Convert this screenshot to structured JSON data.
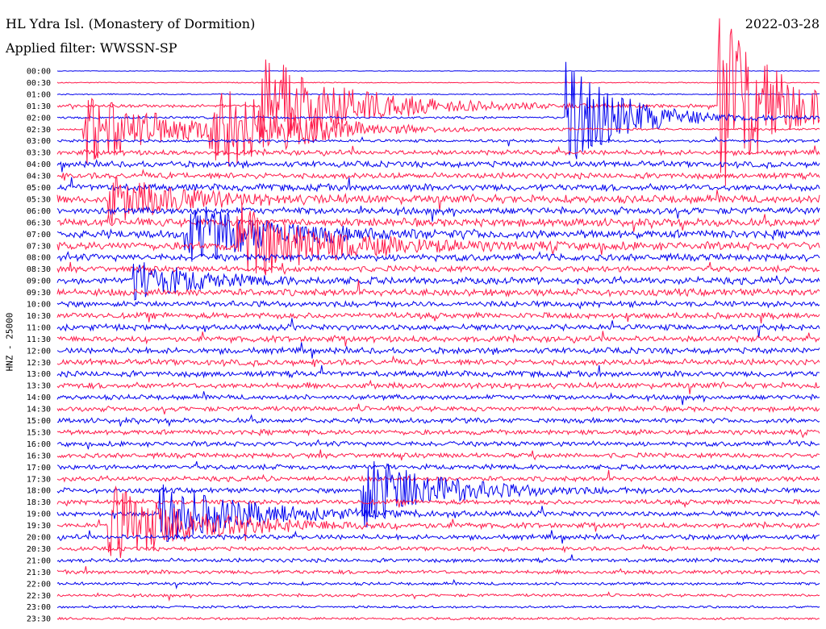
{
  "header": {
    "station": "HL Ydra Isl. (Monastery of Dormition)",
    "date": "2022-03-28",
    "filter": "Applied filter: WWSSN-SP"
  },
  "chart_data": {
    "type": "line",
    "title": "HL Ydra Isl. (Monastery of Dormition)",
    "ylabel": "HNZ - 25000",
    "colors": {
      "odd_trace": "#0000ee",
      "even_trace": "#ff1a4a"
    },
    "rows": [
      "00:00",
      "00:30",
      "01:00",
      "01:30",
      "02:00",
      "02:30",
      "03:00",
      "03:30",
      "04:00",
      "04:30",
      "05:00",
      "05:30",
      "06:00",
      "06:30",
      "07:00",
      "07:30",
      "08:00",
      "08:30",
      "09:00",
      "09:30",
      "10:00",
      "10:30",
      "11:00",
      "11:30",
      "12:00",
      "12:30",
      "13:00",
      "13:30",
      "14:00",
      "14:30",
      "15:00",
      "15:30",
      "16:00",
      "16:30",
      "17:00",
      "17:30",
      "18:00",
      "18:30",
      "19:00",
      "19:30",
      "20:00",
      "20:30",
      "21:00",
      "21:30",
      "22:00",
      "22:30",
      "23:00",
      "23:30"
    ],
    "noise_level": [
      0.3,
      0.5,
      0.6,
      1.5,
      1.2,
      1.0,
      1.5,
      2.5,
      3,
      3,
      3.5,
      4,
      3.5,
      4,
      4,
      4,
      3.5,
      3,
      3.5,
      3.5,
      3,
      3,
      3,
      3,
      3,
      3,
      3,
      3,
      2.5,
      2.5,
      2.5,
      2.5,
      2.5,
      2.5,
      2.5,
      2.5,
      2.5,
      2.5,
      2.5,
      2.5,
      2.5,
      2,
      2,
      2,
      1.5,
      1.5,
      1.2,
      1.2
    ],
    "events": [
      {
        "row": 3,
        "minute": 8,
        "amplitude": 70,
        "duration": 14
      },
      {
        "row": 3,
        "minute": 26,
        "amplitude": 120,
        "duration": 10
      },
      {
        "row": 3,
        "minute": 47,
        "amplitude": 105,
        "duration": 10
      },
      {
        "row": 3,
        "minute": 73,
        "amplitude": 55,
        "duration": 12
      },
      {
        "row": 3,
        "minute": 52,
        "amplitude": 40,
        "duration": 12
      },
      {
        "row": 4,
        "minute": 20,
        "amplitude": 70,
        "duration": 10
      },
      {
        "row": 5,
        "minute": 1,
        "amplitude": 48,
        "duration": 14
      },
      {
        "row": 5,
        "minute": 6,
        "amplitude": 60,
        "duration": 12
      },
      {
        "row": 6,
        "minute": 78,
        "amplitude": 80,
        "duration": 14
      },
      {
        "row": 7,
        "minute": 71,
        "amplitude": 110,
        "duration": 12
      },
      {
        "row": 8,
        "minute": 33,
        "amplitude": 60,
        "duration": 12
      },
      {
        "row": 8,
        "minute": 64,
        "amplitude": 80,
        "duration": 12
      },
      {
        "row": 9,
        "minute": 62,
        "amplitude": 60,
        "duration": 10
      },
      {
        "row": 10,
        "minute": 53,
        "amplitude": 70,
        "duration": 14
      },
      {
        "row": 11,
        "minute": 2,
        "amplitude": 30,
        "duration": 12
      },
      {
        "row": 11,
        "minute": 31,
        "amplitude": 60,
        "duration": 12
      },
      {
        "row": 11,
        "minute": 33,
        "amplitude": 60,
        "duration": 12
      },
      {
        "row": 11,
        "minute": 52,
        "amplitude": 40,
        "duration": 14
      },
      {
        "row": 12,
        "minute": 35,
        "amplitude": 35,
        "duration": 12
      },
      {
        "row": 12,
        "minute": 39,
        "amplitude": 140,
        "duration": 12
      },
      {
        "row": 13,
        "minute": 64,
        "amplitude": 70,
        "duration": 14
      },
      {
        "row": 14,
        "minute": 5,
        "amplitude": 40,
        "duration": 14
      },
      {
        "row": 14,
        "minute": 48,
        "amplitude": 40,
        "duration": 12
      },
      {
        "row": 14,
        "minute": 72,
        "amplitude": 50,
        "duration": 12
      },
      {
        "row": 15,
        "minute": 7,
        "amplitude": 50,
        "duration": 14
      },
      {
        "row": 15,
        "minute": 66,
        "amplitude": 45,
        "duration": 12
      },
      {
        "row": 16,
        "minute": 52,
        "amplitude": 50,
        "duration": 12
      },
      {
        "row": 17,
        "minute": 66,
        "amplitude": 120,
        "duration": 10
      },
      {
        "row": 18,
        "minute": 3,
        "amplitude": 25,
        "duration": 10
      },
      {
        "row": 24,
        "minute": 73,
        "amplitude": 30,
        "duration": 10
      },
      {
        "row": 30,
        "minute": 54,
        "amplitude": 30,
        "duration": 8
      },
      {
        "row": 35,
        "minute": 31,
        "amplitude": 50,
        "duration": 10
      },
      {
        "row": 35,
        "minute": 33,
        "amplitude": 160,
        "duration": 12
      },
      {
        "row": 35,
        "minute": 57,
        "amplitude": 140,
        "duration": 12
      },
      {
        "row": 35,
        "minute": 59,
        "amplitude": 90,
        "duration": 12
      },
      {
        "row": 36,
        "minute": 12,
        "amplitude": 50,
        "duration": 12
      },
      {
        "row": 36,
        "minute": 57,
        "amplitude": 35,
        "duration": 12
      },
      {
        "row": 36,
        "minute": 51,
        "amplitude": 55,
        "duration": 12
      },
      {
        "row": 37,
        "minute": 54,
        "amplitude": 40,
        "duration": 12
      },
      {
        "row": 38,
        "minute": 4,
        "amplitude": 40,
        "duration": 14
      },
      {
        "row": 38,
        "minute": 31,
        "amplitude": 80,
        "duration": 12
      },
      {
        "row": 39,
        "minute": 2,
        "amplitude": 50,
        "duration": 14
      },
      {
        "row": 39,
        "minute": 42,
        "amplitude": 35,
        "duration": 12
      }
    ]
  }
}
